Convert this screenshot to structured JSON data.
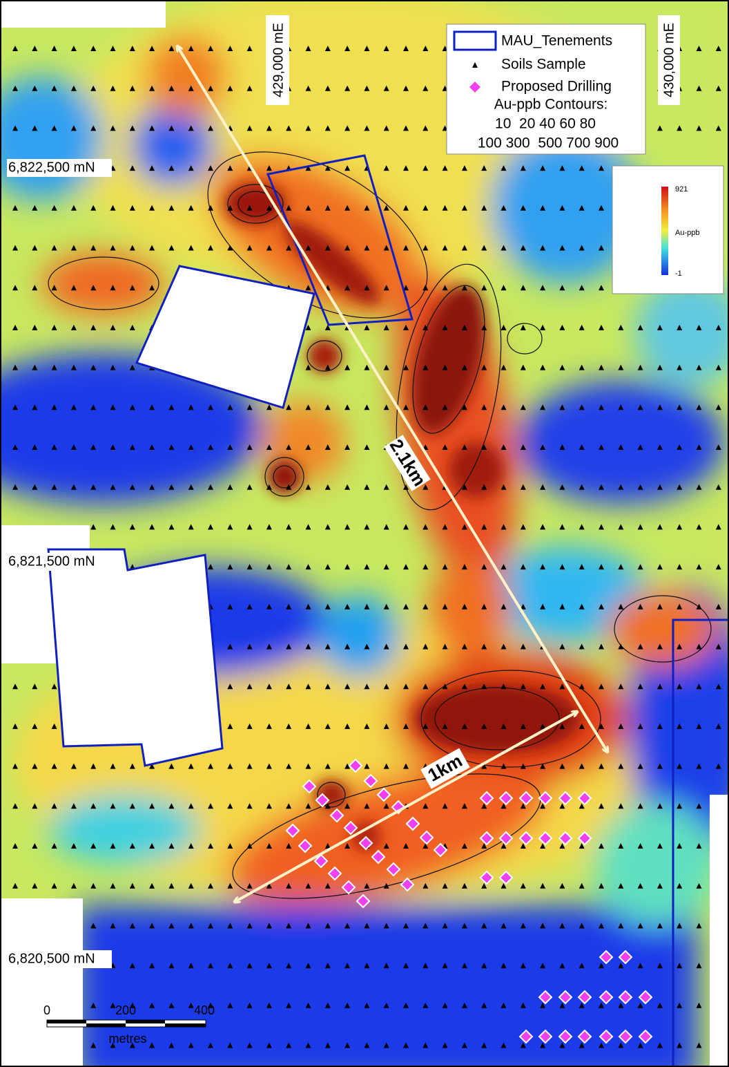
{
  "map": {
    "easting_labels": [
      "429,000 mE",
      "430,000 mE"
    ],
    "northing_labels": [
      "6,822,500 mN",
      "6,821,500 mN",
      "6,820,500 mN"
    ],
    "legend": {
      "items": [
        "MAU_Tenements",
        "Soils Sample",
        "Proposed Drilling"
      ],
      "contours_title": "Au-ppb Contours:",
      "contours_lines": [
        "10  20 40 60 80",
        "100 300  500 700 900"
      ]
    },
    "colorbar": {
      "max": "921",
      "label": "Au-ppb",
      "min": "-1"
    },
    "annotations": [
      "2.1km",
      "1km"
    ],
    "scale_bar": {
      "ticks": [
        "0",
        "200",
        "400"
      ],
      "unit": "metres"
    }
  }
}
